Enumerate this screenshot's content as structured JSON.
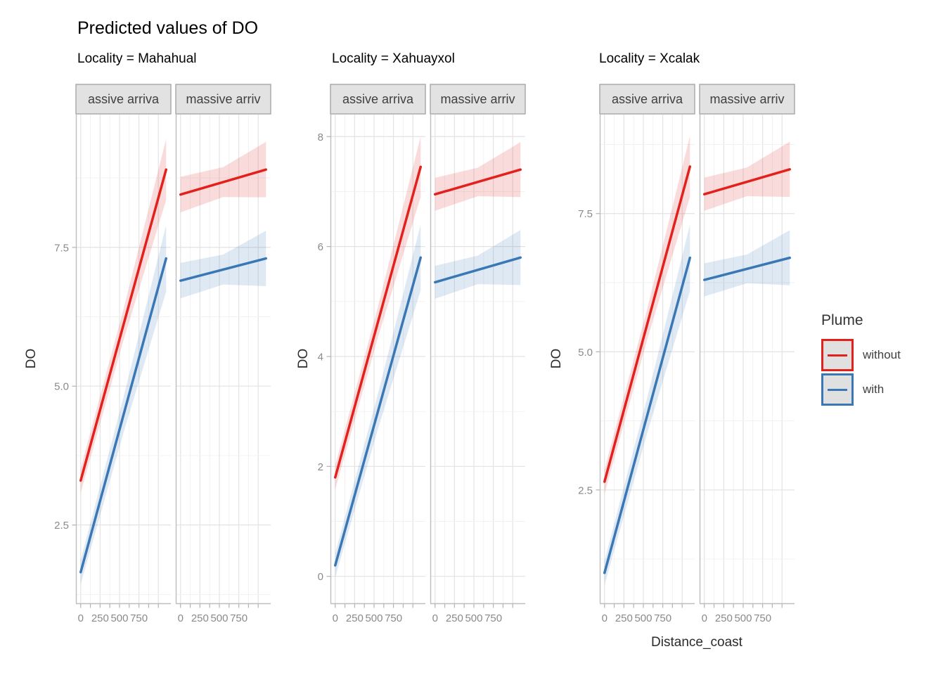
{
  "chart_data": {
    "type": "line",
    "title": "Predicted values of DO",
    "xlabel": "Distance_coast",
    "ylabel": "DO",
    "x_domain": [
      0,
      1100
    ],
    "x_tick_labels": [
      "0",
      "250",
      "500",
      "750"
    ],
    "legend": {
      "title": "Plume",
      "position": "right",
      "entries": [
        {
          "label": "without",
          "color": "#e2211c"
        },
        {
          "label": "with",
          "color": "#3a77b5"
        }
      ]
    },
    "facets": [
      {
        "title": "Locality = Mahahual",
        "y_tick_labels": [
          "2.5",
          "5.0",
          "7.5"
        ],
        "y_domain": [
          1.09,
          9.89
        ],
        "panels": [
          {
            "strip": "assive arriva",
            "series": [
              {
                "name": "without",
                "y_start": 3.3,
                "y_end": 8.9,
                "ci": [
                  0.22,
                  0.28,
                  0.55
                ]
              },
              {
                "name": "with",
                "y_start": 1.65,
                "y_end": 7.3,
                "ci": [
                  0.22,
                  0.32,
                  0.6
                ]
              }
            ]
          },
          {
            "strip": "massive arriv",
            "series": [
              {
                "name": "without",
                "y_start": 8.45,
                "y_end": 8.9,
                "ci": [
                  0.32,
                  0.27,
                  0.5
                ]
              },
              {
                "name": "with",
                "y_start": 6.9,
                "y_end": 7.3,
                "ci": [
                  0.32,
                  0.27,
                  0.5
                ]
              }
            ]
          }
        ]
      },
      {
        "title": "Locality = Xahuayxol",
        "y_tick_labels": [
          "0",
          "2",
          "4",
          "6",
          "8"
        ],
        "y_domain": [
          -0.49,
          8.4
        ],
        "panels": [
          {
            "strip": "assive arriva",
            "series": [
              {
                "name": "without",
                "y_start": 1.8,
                "y_end": 7.45,
                "ci": [
                  0.22,
                  0.28,
                  0.55
                ]
              },
              {
                "name": "with",
                "y_start": 0.2,
                "y_end": 5.8,
                "ci": [
                  0.22,
                  0.32,
                  0.6
                ]
              }
            ]
          },
          {
            "strip": "massive arriv",
            "series": [
              {
                "name": "without",
                "y_start": 6.95,
                "y_end": 7.4,
                "ci": [
                  0.3,
                  0.26,
                  0.5
                ]
              },
              {
                "name": "with",
                "y_start": 5.35,
                "y_end": 5.8,
                "ci": [
                  0.3,
                  0.26,
                  0.5
                ]
              }
            ]
          }
        ]
      },
      {
        "title": "Locality = Xcalak",
        "y_tick_labels": [
          "2.5",
          "5.0",
          "7.5"
        ],
        "y_domain": [
          0.45,
          9.29
        ],
        "panels": [
          {
            "strip": "assive arriva",
            "series": [
              {
                "name": "without",
                "y_start": 2.65,
                "y_end": 8.35,
                "ci": [
                  0.22,
                  0.28,
                  0.55
                ]
              },
              {
                "name": "with",
                "y_start": 1.0,
                "y_end": 6.7,
                "ci": [
                  0.22,
                  0.32,
                  0.6
                ]
              }
            ]
          },
          {
            "strip": "massive arriv",
            "series": [
              {
                "name": "without",
                "y_start": 7.85,
                "y_end": 8.3,
                "ci": [
                  0.3,
                  0.26,
                  0.5
                ]
              },
              {
                "name": "with",
                "y_start": 6.3,
                "y_end": 6.7,
                "ci": [
                  0.3,
                  0.26,
                  0.5
                ]
              }
            ]
          }
        ]
      }
    ]
  }
}
